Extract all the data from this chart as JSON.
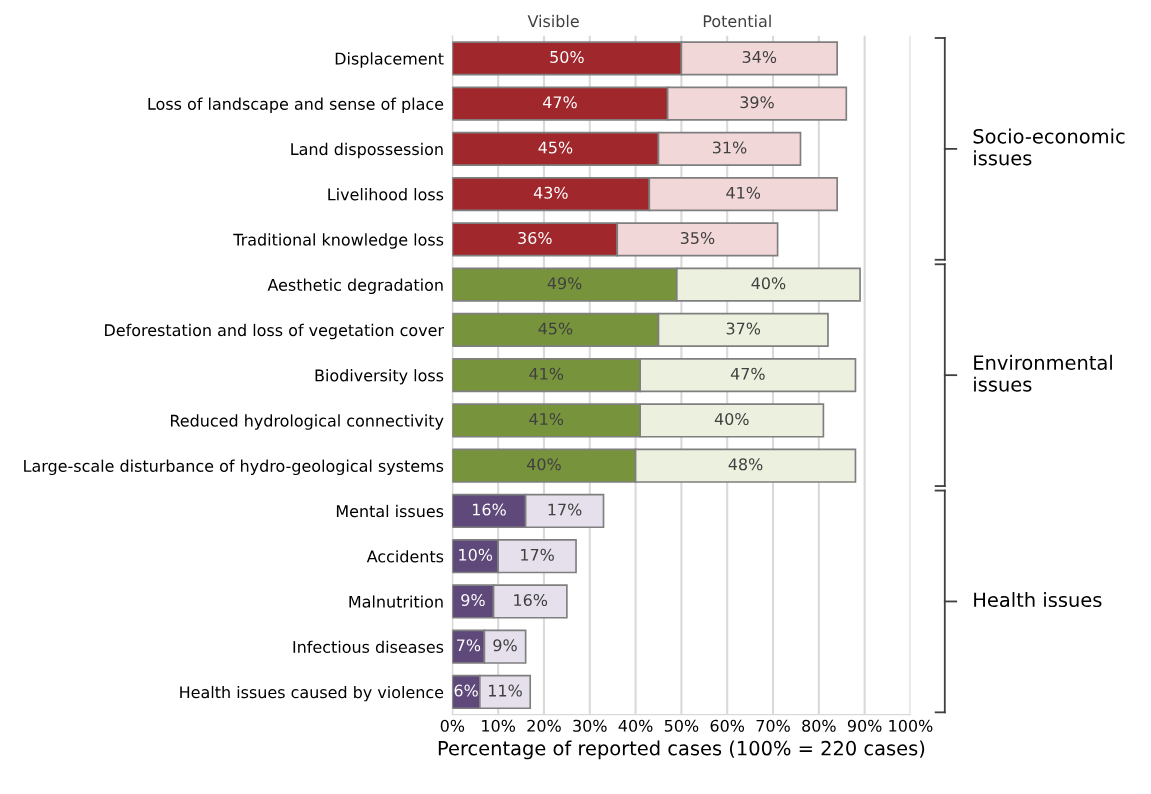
{
  "chart_data": {
    "type": "bar",
    "orientation": "horizontal",
    "stacked": true,
    "categories": [
      "Displacement",
      "Loss of landscape and sense of place",
      "Land dispossession",
      "Livelihood loss",
      "Traditional knowledge loss",
      "Aesthetic degradation",
      "Deforestation and loss of vegetation cover",
      "Biodiversity loss",
      "Reduced hydrological connectivity",
      "Large-scale disturbance of hydro-geological systems",
      "Mental issues",
      "Accidents",
      "Malnutrition",
      "Infectious diseases",
      "Health issues caused by violence"
    ],
    "series": [
      {
        "name": "Visible",
        "colors": [
          "#a0282c",
          "#a0282c",
          "#a0282c",
          "#a0282c",
          "#a0282c",
          "#77933c",
          "#77933c",
          "#77933c",
          "#77933c",
          "#77933c",
          "#5f497a",
          "#5f497a",
          "#5f497a",
          "#5f497a",
          "#5f497a"
        ],
        "values": [
          50,
          47,
          45,
          43,
          36,
          49,
          45,
          41,
          41,
          40,
          16,
          10,
          9,
          7,
          6
        ],
        "value_labels": [
          "50%",
          "47%",
          "45%",
          "43%",
          "36%",
          "49%",
          "45%",
          "41%",
          "41%",
          "40%",
          "16%",
          "10%",
          "9%",
          "7%",
          "6%"
        ]
      },
      {
        "name": "Potential",
        "colors": [
          "#f2d7d9",
          "#f2d7d9",
          "#f2d7d9",
          "#f2d7d9",
          "#f2d7d9",
          "#ebf1de",
          "#ebf1de",
          "#ebf1de",
          "#ebf1de",
          "#ebf1de",
          "#e6e0ec",
          "#e6e0ec",
          "#e6e0ec",
          "#e6e0ec",
          "#e6e0ec"
        ],
        "values": [
          34,
          39,
          31,
          41,
          35,
          40,
          37,
          47,
          40,
          48,
          17,
          17,
          16,
          9,
          11
        ],
        "value_labels": [
          "34%",
          "39%",
          "31%",
          "41%",
          "35%",
          "40%",
          "37%",
          "47%",
          "40%",
          "48%",
          "17%",
          "17%",
          "16%",
          "9%",
          "11%"
        ]
      }
    ],
    "xlabel": "Percentage of reported cases (100% = 220 cases)",
    "xlim": [
      0,
      100
    ],
    "xticks": [
      {
        "value": 0,
        "label": "0%"
      },
      {
        "value": 10,
        "label": "10%"
      },
      {
        "value": 20,
        "label": "20%"
      },
      {
        "value": 30,
        "label": "30%"
      },
      {
        "value": 40,
        "label": "40%"
      },
      {
        "value": 50,
        "label": "50%"
      },
      {
        "value": 60,
        "label": "60%"
      },
      {
        "value": 70,
        "label": "70%"
      },
      {
        "value": 80,
        "label": "80%"
      },
      {
        "value": 90,
        "label": "90%"
      },
      {
        "value": 100,
        "label": "100%"
      }
    ],
    "grid": "x",
    "annotations": [
      "Socio-economic issues",
      "Environmental issues",
      "Health issues"
    ]
  }
}
